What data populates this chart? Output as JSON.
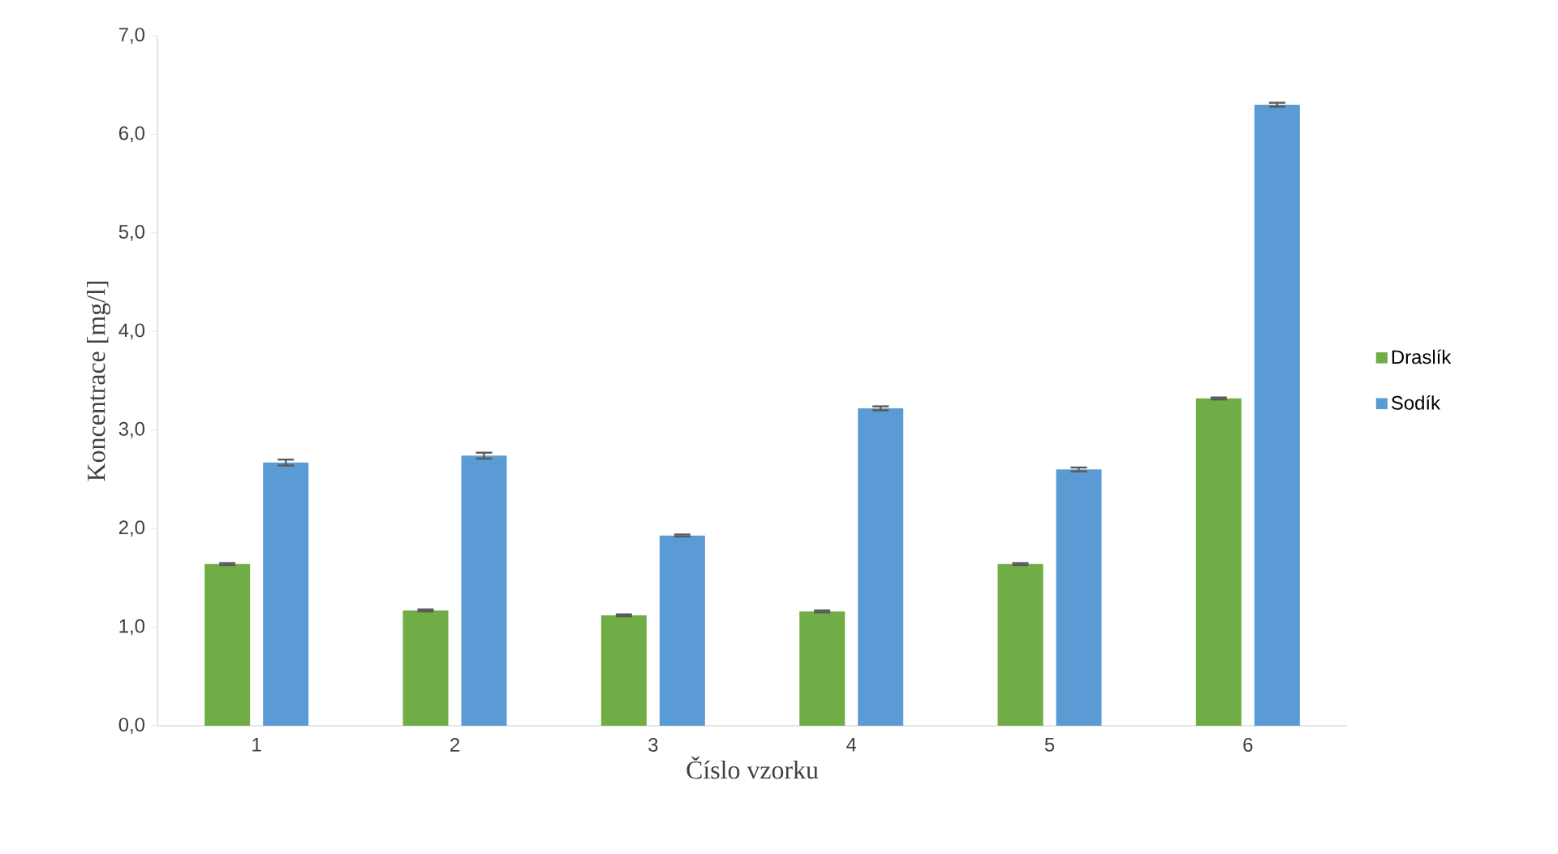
{
  "chart_data": {
    "type": "bar",
    "xlabel": "Číslo vzorku",
    "ylabel": "Koncentrace [mg/l]",
    "categories": [
      "1",
      "2",
      "3",
      "4",
      "5",
      "6"
    ],
    "series": [
      {
        "name": "Draslík",
        "color": "#70ad47",
        "values": [
          1.64,
          1.17,
          1.12,
          1.16,
          1.64,
          3.32
        ],
        "errors": [
          0.01,
          0.01,
          0.01,
          0.01,
          0.01,
          0.01
        ]
      },
      {
        "name": "Sodík",
        "color": "#5b9bd5",
        "values": [
          2.67,
          2.74,
          1.93,
          3.22,
          2.6,
          6.3
        ],
        "errors": [
          0.03,
          0.03,
          0.01,
          0.02,
          0.02,
          0.02
        ]
      }
    ],
    "ylim": [
      0,
      7
    ],
    "yticks": [
      {
        "value": 0,
        "label": "0,0"
      },
      {
        "value": 1,
        "label": "1,0"
      },
      {
        "value": 2,
        "label": "2,0"
      },
      {
        "value": 3,
        "label": "3,0"
      },
      {
        "value": 4,
        "label": "4,0"
      },
      {
        "value": 5,
        "label": "5,0"
      },
      {
        "value": 6,
        "label": "6,0"
      },
      {
        "value": 7,
        "label": "7,0"
      }
    ],
    "grid": false,
    "legend": "right"
  }
}
